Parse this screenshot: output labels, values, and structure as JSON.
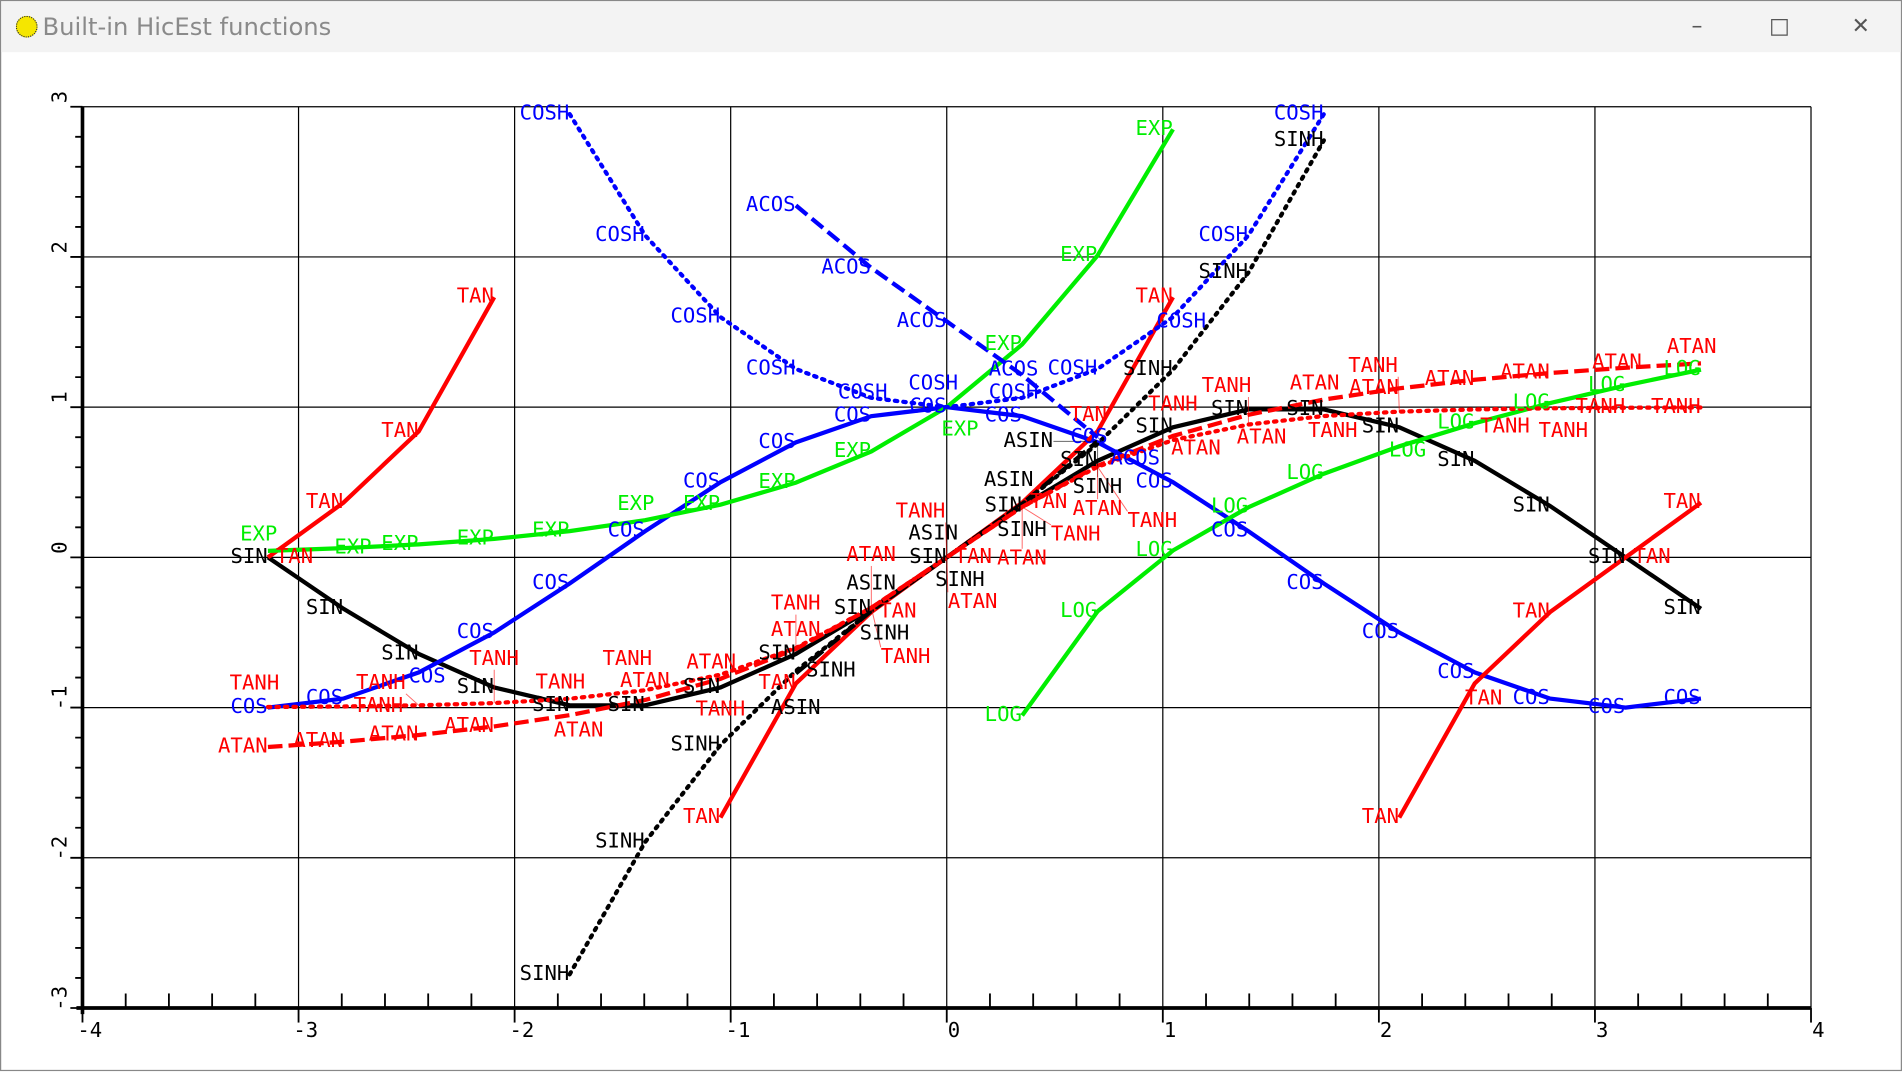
{
  "window": {
    "title": "Built-in HicEst functions",
    "minimize_icon": "minimize-icon",
    "maximize_icon": "maximize-icon",
    "close_icon": "close-icon"
  },
  "chart_data": {
    "type": "line",
    "title": "",
    "xlabel": "",
    "ylabel": "",
    "xlim": [
      -4,
      4
    ],
    "ylim": [
      -3,
      3
    ],
    "grid": true,
    "xticks": [
      "-4",
      "-3",
      "-2",
      "-1",
      "0",
      "1",
      "2",
      "3",
      "4"
    ],
    "yticks": [
      "-3",
      "-2",
      "-1",
      "0",
      "1",
      "2",
      "3"
    ],
    "x": [
      -3.1416,
      -2.7925,
      -2.4435,
      -2.0944,
      -1.7453,
      -1.3963,
      -1.0472,
      -0.6981,
      -0.3491,
      0,
      0.3491,
      0.6981,
      1.0472,
      1.3963,
      1.7453,
      2.0944,
      2.4435,
      2.7925,
      3.1416,
      3.4907
    ],
    "series": [
      {
        "name": "SIN",
        "color": "#000000",
        "style": "solid",
        "values": [
          0,
          -0.342,
          -0.643,
          -0.866,
          -0.985,
          -0.985,
          -0.866,
          -0.643,
          -0.342,
          0,
          0.342,
          0.643,
          0.866,
          0.985,
          0.985,
          0.866,
          0.643,
          0.342,
          0,
          -0.342
        ]
      },
      {
        "name": "COS",
        "color": "#0000ff",
        "style": "solid",
        "values": [
          -1,
          -0.94,
          -0.766,
          -0.5,
          -0.174,
          0.174,
          0.5,
          0.766,
          0.94,
          1,
          0.94,
          0.766,
          0.5,
          0.174,
          -0.174,
          -0.5,
          -0.766,
          -0.94,
          -1,
          -0.94
        ]
      },
      {
        "name": "TAN",
        "color": "#ff0000",
        "style": "solid",
        "values": [
          0,
          0.364,
          0.839,
          1.732,
          null,
          null,
          -1.732,
          -0.839,
          -0.364,
          0,
          0.364,
          0.839,
          1.732,
          null,
          null,
          -1.732,
          -0.839,
          -0.364,
          0,
          0.364
        ]
      },
      {
        "name": "EXP",
        "color": "#00ee00",
        "style": "solid",
        "values": [
          0.0432,
          0.0613,
          0.0869,
          0.1231,
          0.1746,
          0.2475,
          0.3509,
          0.4975,
          0.7053,
          1,
          1.4177,
          2.01,
          2.8497,
          null,
          null,
          null,
          null,
          null,
          null,
          null
        ]
      },
      {
        "name": "LOG",
        "color": "#00ee00",
        "style": "solid",
        "values": [
          null,
          null,
          null,
          null,
          null,
          null,
          null,
          null,
          null,
          null,
          -1.0526,
          -0.3594,
          0.0461,
          0.3338,
          0.557,
          0.7393,
          0.8934,
          1.027,
          1.1447,
          1.25
        ]
      },
      {
        "name": "SINH",
        "color": "#000000",
        "style": "dotted",
        "values": [
          null,
          null,
          null,
          null,
          -2.776,
          -1.896,
          -1.249,
          -0.756,
          -0.356,
          0,
          0.356,
          0.756,
          1.249,
          1.896,
          2.776,
          null,
          null,
          null,
          null,
          null
        ]
      },
      {
        "name": "COSH",
        "color": "#0000ff",
        "style": "dotted",
        "values": [
          null,
          null,
          null,
          null,
          2.951,
          2.144,
          1.6,
          1.254,
          1.062,
          1,
          1.062,
          1.254,
          1.6,
          2.144,
          2.951,
          null,
          null,
          null,
          null,
          null
        ]
      },
      {
        "name": "ASIN",
        "color": "#000000",
        "style": "dashed",
        "values": [
          null,
          null,
          null,
          null,
          null,
          null,
          null,
          -0.772,
          -0.3565,
          0,
          0.3565,
          0.772,
          null,
          null,
          null,
          null,
          null,
          null,
          null,
          null
        ]
      },
      {
        "name": "ACOS",
        "color": "#0000ff",
        "style": "dashed",
        "values": [
          null,
          null,
          null,
          null,
          null,
          null,
          null,
          2.343,
          1.927,
          1.571,
          1.214,
          0.799,
          null,
          null,
          null,
          null,
          null,
          null,
          null,
          null
        ]
      },
      {
        "name": "ATAN",
        "color": "#ff0000",
        "style": "dashed",
        "values": [
          -1.2626,
          -1.2271,
          -1.1826,
          -1.1254,
          -1.0505,
          -0.9494,
          -0.8084,
          -0.6094,
          -0.3358,
          0,
          0.3358,
          0.6094,
          0.8084,
          0.9494,
          1.0505,
          1.1254,
          1.1826,
          1.2271,
          1.2626,
          1.2918
        ]
      },
      {
        "name": "TANH",
        "color": "#ff0000",
        "style": "dotted",
        "values": [
          -0.9963,
          -0.9925,
          -0.985,
          -0.9701,
          -0.9411,
          -0.8845,
          -0.7807,
          -0.6031,
          -0.3355,
          0,
          0.3355,
          0.6031,
          0.7807,
          0.8845,
          0.9411,
          0.9701,
          0.985,
          0.9925,
          0.9963,
          0.9981
        ]
      }
    ]
  }
}
